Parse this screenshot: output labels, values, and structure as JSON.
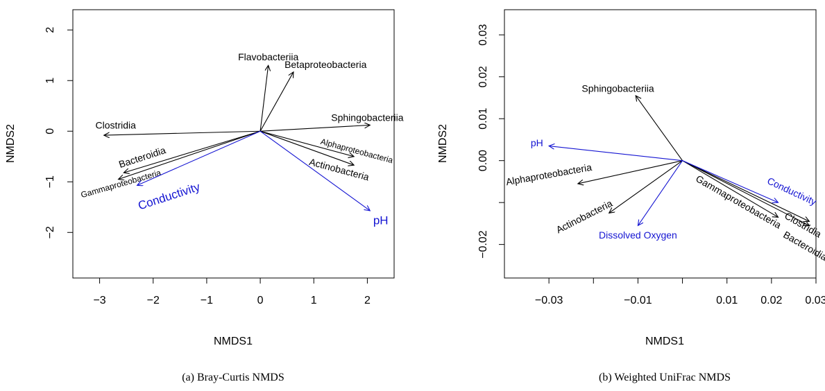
{
  "colors": {
    "taxa": "#000000",
    "env": "#1414d2"
  },
  "chart_data": [
    {
      "type": "scatter",
      "caption": "(a) Bray-Curtis NMDS",
      "xlabel": "NMDS1",
      "ylabel": "NMDS2",
      "xlim": [
        -3.5,
        2.5
      ],
      "ylim": [
        -2.9,
        2.4
      ],
      "xticks": [
        -3,
        -2,
        -1,
        0,
        1,
        2
      ],
      "yticks": [
        -2,
        -1,
        0,
        1,
        2
      ],
      "xtick_labels": [
        "−3",
        "−2",
        "−1",
        "0",
        "1",
        "2"
      ],
      "ytick_labels": [
        "−2",
        "−1",
        "0",
        "1",
        "2"
      ],
      "origin": [
        0,
        0
      ],
      "vectors": [
        {
          "label": "Flavobacteriia",
          "group": "taxa",
          "x": 0.15,
          "y": 1.3,
          "label_x": 0.15,
          "label_y": 1.45,
          "rotation": 0,
          "size": 14
        },
        {
          "label": "Betaproteobacteria",
          "group": "taxa",
          "x": 0.62,
          "y": 1.17,
          "label_x": 1.22,
          "label_y": 1.3,
          "rotation": 0,
          "size": 14
        },
        {
          "label": "Clostridia",
          "group": "taxa",
          "x": -2.92,
          "y": -0.08,
          "label_x": -2.7,
          "label_y": 0.1,
          "rotation": 0,
          "size": 14
        },
        {
          "label": "Sphingobacteriia",
          "group": "taxa",
          "x": 2.05,
          "y": 0.12,
          "label_x": 2.0,
          "label_y": 0.25,
          "rotation": 0,
          "size": 14
        },
        {
          "label": "Bacteroidia",
          "group": "taxa",
          "x": -2.55,
          "y": -0.82,
          "label_x": -2.2,
          "label_y": -0.53,
          "rotation": -18,
          "size": 14
        },
        {
          "label": "Gammaproteobacteria",
          "group": "taxa",
          "x": -2.65,
          "y": -0.95,
          "label_x": -2.6,
          "label_y": -1.05,
          "rotation": -16,
          "size": 12
        },
        {
          "label": "Alphaproteobacteria",
          "group": "taxa",
          "x": 1.75,
          "y": -0.5,
          "label_x": 1.8,
          "label_y": -0.4,
          "rotation": 15,
          "size": 12
        },
        {
          "label": "Actinobacteria",
          "group": "taxa",
          "x": 1.75,
          "y": -0.67,
          "label_x": 1.47,
          "label_y": -0.77,
          "rotation": 15,
          "size": 14
        },
        {
          "label": "Conductivity",
          "group": "env",
          "x": -2.3,
          "y": -1.07,
          "label_x": -1.7,
          "label_y": -1.3,
          "rotation": -18,
          "size": 17
        },
        {
          "label": "pH",
          "group": "env",
          "x": 2.05,
          "y": -1.57,
          "label_x": 2.25,
          "label_y": -1.78,
          "rotation": 0,
          "size": 17
        }
      ]
    },
    {
      "type": "scatter",
      "caption": "(b) Weighted UniFrac NMDS",
      "xlabel": "NMDS1",
      "ylabel": "NMDS2",
      "xlim": [
        -0.04,
        0.03
      ],
      "ylim": [
        -0.028,
        0.036
      ],
      "xticks": [
        -0.03,
        -0.02,
        -0.01,
        0,
        0.01,
        0.02,
        0.03
      ],
      "yticks": [
        -0.02,
        -0.01,
        0,
        0.01,
        0.02,
        0.03
      ],
      "xtick_labels": [
        "−0.03",
        "",
        "−0.01",
        "",
        "0.01",
        "0.02",
        "0.03"
      ],
      "ytick_labels": [
        "−0.02",
        "",
        "0.00",
        "0.01",
        "0.02",
        "0.03"
      ],
      "origin": [
        0,
        0
      ],
      "vectors": [
        {
          "label": "Sphingobacteriia",
          "group": "taxa",
          "x": -0.0105,
          "y": 0.0155,
          "label_x": -0.0145,
          "label_y": 0.017,
          "rotation": 0,
          "size": 14
        },
        {
          "label": "Alphaproteobacteria",
          "group": "taxa",
          "x": -0.0235,
          "y": -0.0055,
          "label_x": -0.03,
          "label_y": -0.0035,
          "rotation": -10,
          "size": 14
        },
        {
          "label": "Actinobacteria",
          "group": "taxa",
          "x": -0.0165,
          "y": -0.0125,
          "label_x": -0.022,
          "label_y": -0.0135,
          "rotation": -27,
          "size": 14
        },
        {
          "label": "Gammaproteobacteria",
          "group": "taxa",
          "x": 0.0215,
          "y": -0.0135,
          "label_x": 0.0125,
          "label_y": -0.01,
          "rotation": 30,
          "size": 14
        },
        {
          "label": "Clostridia",
          "group": "taxa",
          "x": 0.0285,
          "y": -0.0145,
          "label_x": 0.027,
          "label_y": -0.0155,
          "rotation": 30,
          "size": 14
        },
        {
          "label": "Bacteroidia",
          "group": "taxa",
          "x": 0.0285,
          "y": -0.0155,
          "label_x": 0.0275,
          "label_y": -0.0205,
          "rotation": 30,
          "size": 14
        },
        {
          "label": "Conductivity",
          "group": "env",
          "x": 0.0215,
          "y": -0.01,
          "label_x": 0.0245,
          "label_y": -0.0075,
          "rotation": 25,
          "size": 14
        },
        {
          "label": "pH",
          "group": "env",
          "x": -0.03,
          "y": 0.0035,
          "label_x": -0.0327,
          "label_y": 0.004,
          "rotation": 0,
          "size": 14
        },
        {
          "label": "Dissolved Oxygen",
          "group": "env",
          "x": -0.01,
          "y": -0.0155,
          "label_x": -0.01,
          "label_y": -0.018,
          "rotation": 0,
          "size": 14
        }
      ]
    }
  ]
}
